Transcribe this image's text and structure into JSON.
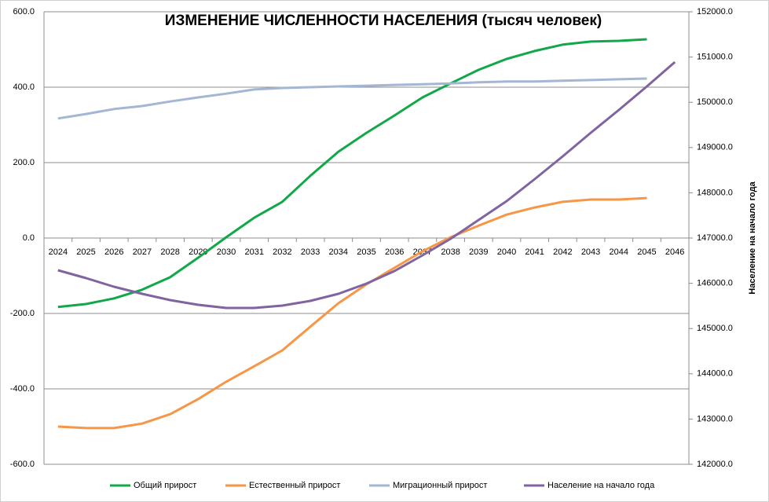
{
  "chart_data": {
    "type": "line",
    "title": "ИЗМЕНЕНИЕ ЧИСЛЕННОСТИ НАСЕЛЕНИЯ (тысяч человек)",
    "y2label": "Население на начало года",
    "categories": [
      "2024",
      "2025",
      "2026",
      "2027",
      "2028",
      "2029",
      "2030",
      "2031",
      "2032",
      "2033",
      "2034",
      "2035",
      "2036",
      "2037",
      "2038",
      "2039",
      "2040",
      "2041",
      "2042",
      "2043",
      "2044",
      "2045",
      "2046"
    ],
    "ylim": [
      -600,
      600
    ],
    "yticks": [
      {
        "value": -600,
        "label": "-600.0"
      },
      {
        "value": -400,
        "label": "-400.0"
      },
      {
        "value": -200,
        "label": "-200.0"
      },
      {
        "value": 0,
        "label": "0.0"
      },
      {
        "value": 200,
        "label": "200.0"
      },
      {
        "value": 400,
        "label": "400.0"
      },
      {
        "value": 600,
        "label": "600.0"
      }
    ],
    "y2lim": [
      142000,
      152000
    ],
    "y2ticks": [
      {
        "value": 142000,
        "label": "142000.0"
      },
      {
        "value": 143000,
        "label": "143000.0"
      },
      {
        "value": 144000,
        "label": "144000.0"
      },
      {
        "value": 145000,
        "label": "145000.0"
      },
      {
        "value": 146000,
        "label": "146000.0"
      },
      {
        "value": 147000,
        "label": "147000.0"
      },
      {
        "value": 148000,
        "label": "148000.0"
      },
      {
        "value": 149000,
        "label": "149000.0"
      },
      {
        "value": 150000,
        "label": "150000.0"
      },
      {
        "value": 151000,
        "label": "151000.0"
      },
      {
        "value": 152000,
        "label": "152000.0"
      }
    ],
    "grid": true,
    "legend": "bottom",
    "series": [
      {
        "name": "Общий прирост",
        "color": "#12a84a",
        "values": [
          -183,
          -175,
          -160,
          -137,
          -104,
          -52,
          2,
          54,
          96,
          165,
          229,
          279,
          325,
          373,
          410,
          446,
          475,
          496,
          513,
          521,
          523,
          527,
          null
        ]
      },
      {
        "name": "Естественный  прирост",
        "color": "#f79646",
        "values": [
          -500,
          -504,
          -504,
          -492,
          -467,
          -427,
          -381,
          -340,
          -298,
          -235,
          -173,
          -123,
          -79,
          -35,
          2,
          33,
          62,
          81,
          96,
          102,
          102,
          106,
          null
        ]
      },
      {
        "name": "Миграционный прирост",
        "color": "#a3b6d3",
        "values": [
          317,
          329,
          342,
          350,
          362,
          373,
          383,
          394,
          398,
          400,
          402,
          404,
          406,
          408,
          410,
          413,
          415,
          415,
          417,
          419,
          421,
          423,
          null
        ]
      },
      {
        "name": "Население на начало года",
        "color": "#8064a2",
        "axis": "y2",
        "values": [
          146288,
          146115,
          145924,
          145767,
          145628,
          145524,
          145455,
          145455,
          145507,
          145611,
          145767,
          145993,
          146271,
          146618,
          146983,
          147399,
          147816,
          148302,
          148806,
          149326,
          149830,
          150351,
          150889
        ]
      }
    ]
  }
}
